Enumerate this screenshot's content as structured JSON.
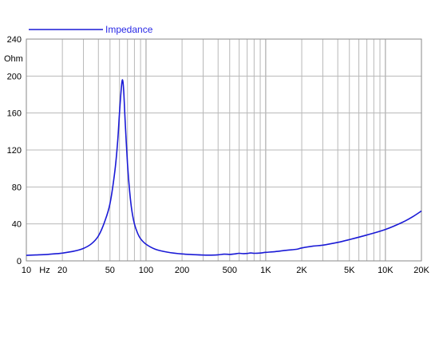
{
  "chart_data": {
    "type": "line",
    "title": "",
    "xlabel": "Hz",
    "ylabel": "Ohm",
    "x_scale": "log",
    "xlim": [
      10,
      20000
    ],
    "ylim": [
      0,
      240
    ],
    "grid": true,
    "legend_position": "top-left",
    "x_tick_labels": [
      {
        "value": 10,
        "label": "10"
      },
      {
        "value": 20,
        "label": "20"
      },
      {
        "value": 50,
        "label": "50"
      },
      {
        "value": 100,
        "label": "100"
      },
      {
        "value": 200,
        "label": "200"
      },
      {
        "value": 500,
        "label": "500"
      },
      {
        "value": 1000,
        "label": "1K"
      },
      {
        "value": 2000,
        "label": "2K"
      },
      {
        "value": 5000,
        "label": "5K"
      },
      {
        "value": 10000,
        "label": "10K"
      },
      {
        "value": 20000,
        "label": "20K"
      }
    ],
    "y_tick_labels": [
      {
        "value": 0,
        "label": "0"
      },
      {
        "value": 40,
        "label": "40"
      },
      {
        "value": 80,
        "label": "80"
      },
      {
        "value": 120,
        "label": "120"
      },
      {
        "value": 160,
        "label": "160"
      },
      {
        "value": 200,
        "label": "200"
      },
      {
        "value": 240,
        "label": "240"
      }
    ],
    "series": [
      {
        "name": "Impedance",
        "color": "#1a1ad6",
        "points": [
          [
            10,
            6.0
          ],
          [
            12,
            6.4
          ],
          [
            15,
            7.0
          ],
          [
            18,
            7.8
          ],
          [
            20,
            8.4
          ],
          [
            25,
            10.5
          ],
          [
            30,
            13.5
          ],
          [
            35,
            18.5
          ],
          [
            40,
            27
          ],
          [
            45,
            42
          ],
          [
            50,
            62
          ],
          [
            55,
            98
          ],
          [
            58,
            130
          ],
          [
            60,
            160
          ],
          [
            62,
            185
          ],
          [
            63.5,
            196
          ],
          [
            65,
            185
          ],
          [
            67,
            150
          ],
          [
            70,
            105
          ],
          [
            73,
            75
          ],
          [
            76,
            55
          ],
          [
            80,
            40
          ],
          [
            85,
            30
          ],
          [
            90,
            24
          ],
          [
            100,
            18
          ],
          [
            120,
            12.5
          ],
          [
            150,
            9.5
          ],
          [
            200,
            7.5
          ],
          [
            300,
            6.3
          ],
          [
            350,
            6.2
          ],
          [
            400,
            6.5
          ],
          [
            450,
            7.3
          ],
          [
            500,
            7.0
          ],
          [
            550,
            7.5
          ],
          [
            600,
            8.2
          ],
          [
            650,
            7.8
          ],
          [
            700,
            8.0
          ],
          [
            750,
            8.6
          ],
          [
            800,
            8.2
          ],
          [
            900,
            8.5
          ],
          [
            1000,
            9.2
          ],
          [
            1200,
            10
          ],
          [
            1500,
            11.5
          ],
          [
            1800,
            12.5
          ],
          [
            2000,
            14
          ],
          [
            2500,
            16
          ],
          [
            3000,
            17
          ],
          [
            4000,
            20
          ],
          [
            5000,
            23
          ],
          [
            7000,
            28
          ],
          [
            10000,
            34
          ],
          [
            14000,
            42
          ],
          [
            17000,
            48
          ],
          [
            20000,
            54
          ]
        ]
      }
    ]
  }
}
